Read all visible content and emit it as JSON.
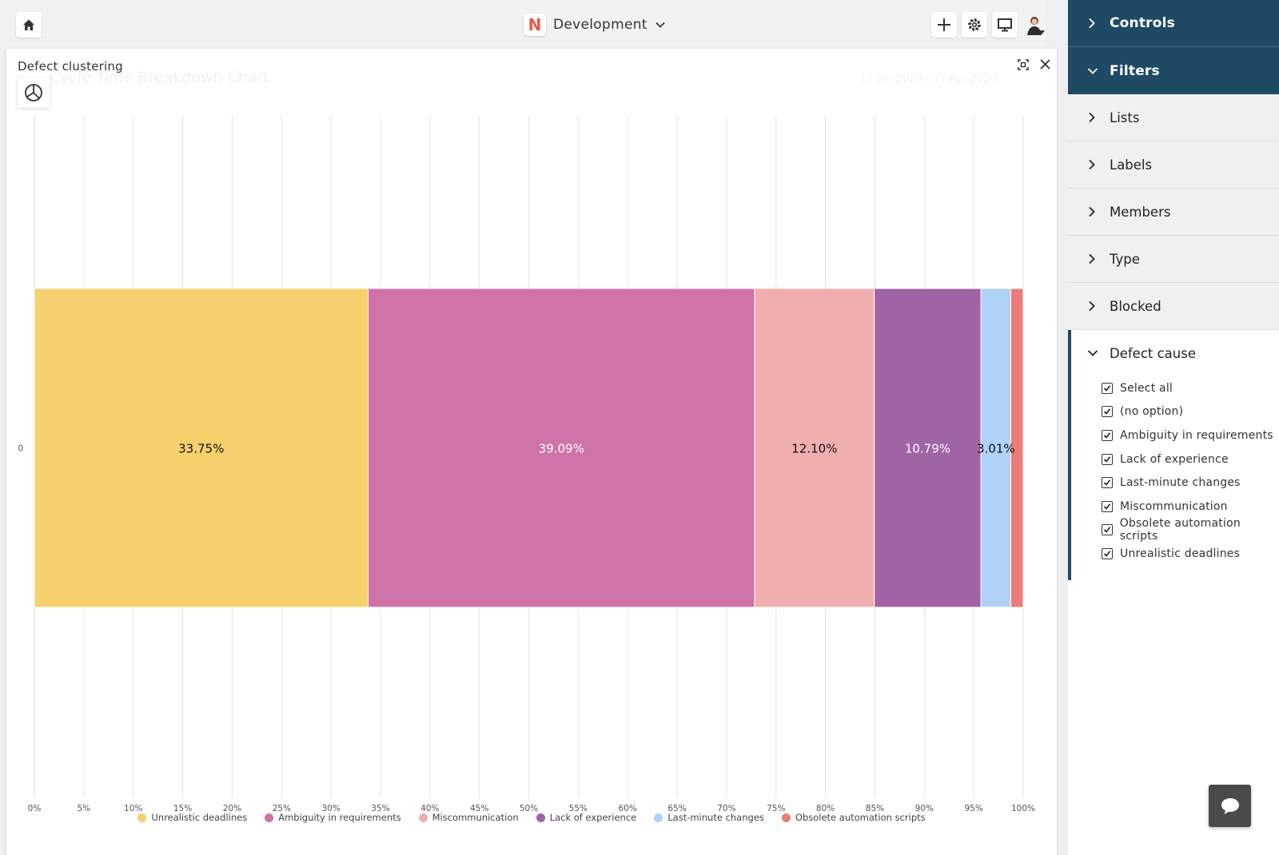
{
  "topbar": {
    "board_name": "Development",
    "logo_letter": "N"
  },
  "modal": {
    "title": "Defect clustering"
  },
  "ghost": {
    "chart_title": "Cycle Time Breakdown Chart",
    "date_range": "17 Jan 2020 - 17 Apr 2020"
  },
  "sidebar": {
    "controls_label": "Controls",
    "filters_label": "Filters",
    "sections": [
      {
        "label": "Lists"
      },
      {
        "label": "Labels"
      },
      {
        "label": "Members"
      },
      {
        "label": "Type"
      },
      {
        "label": "Blocked"
      }
    ],
    "defect_cause": {
      "label": "Defect cause",
      "options": [
        {
          "label": "Select all",
          "checked": true
        },
        {
          "label": "(no option)",
          "checked": true
        },
        {
          "label": "Ambiguity in requirements",
          "checked": true
        },
        {
          "label": "Lack of experience",
          "checked": true
        },
        {
          "label": "Last-minute changes",
          "checked": true
        },
        {
          "label": "Miscommunication",
          "checked": true
        },
        {
          "label": "Obsolete automation scripts",
          "checked": true
        },
        {
          "label": "Unrealistic deadlines",
          "checked": true
        }
      ]
    }
  },
  "colors": {
    "nav_dark": "#1f4a66",
    "logo_accent": "#e8584a"
  },
  "chart_data": {
    "type": "bar",
    "orientation": "horizontal",
    "stacked": "100%",
    "categories": [
      "0"
    ],
    "xlim": [
      0,
      100
    ],
    "x_ticks": [
      "0%",
      "5%",
      "10%",
      "15%",
      "20%",
      "25%",
      "30%",
      "35%",
      "40%",
      "45%",
      "50%",
      "55%",
      "60%",
      "65%",
      "70%",
      "75%",
      "80%",
      "85%",
      "90%",
      "95%",
      "100%"
    ],
    "grid": true,
    "legend_position": "bottom",
    "series": [
      {
        "name": "Unrealistic deadlines",
        "values": [
          33.75
        ],
        "label": "33.75%",
        "color": "#f6d06d",
        "label_color": "#111111"
      },
      {
        "name": "Ambiguity in requirements",
        "values": [
          39.09
        ],
        "label": "39.09%",
        "color": "#cf72a8",
        "label_color": "#ffffff"
      },
      {
        "name": "Miscommunication",
        "values": [
          12.1
        ],
        "label": "12.10%",
        "color": "#f1aeae",
        "label_color": "#111111"
      },
      {
        "name": "Lack of experience",
        "values": [
          10.79
        ],
        "label": "10.79%",
        "color": "#a063a6",
        "label_color": "#ffffff"
      },
      {
        "name": "Last-minute changes",
        "values": [
          3.01
        ],
        "label": "3.01%",
        "color": "#afd1f6",
        "label_color": "#111111"
      },
      {
        "name": "Obsolete automation scripts",
        "values": [
          1.26
        ],
        "label": "",
        "color": "#ec7b7b",
        "label_color": "#111111"
      }
    ]
  }
}
